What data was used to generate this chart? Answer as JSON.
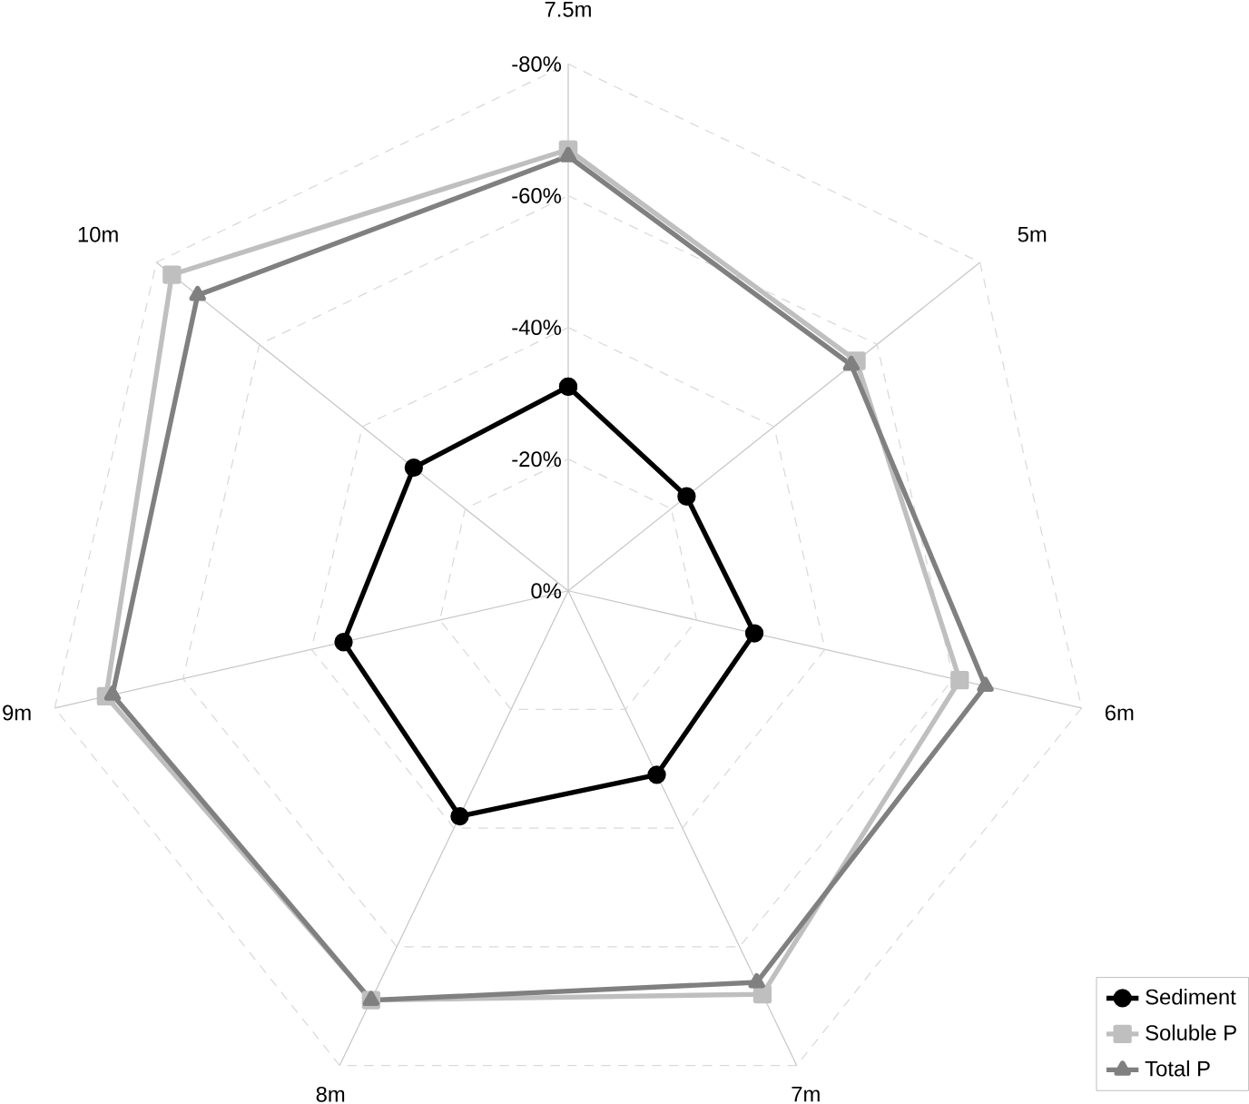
{
  "chart_data": {
    "type": "radar",
    "categories": [
      "7.5m",
      "5m",
      "6m",
      "7m",
      "8m",
      "9m",
      "10m"
    ],
    "ylim": [
      0,
      -80
    ],
    "yticks": [
      {
        "value": 0,
        "label": "0%"
      },
      {
        "value": -20,
        "label": "-20%"
      },
      {
        "value": -40,
        "label": "-40%"
      },
      {
        "value": -60,
        "label": "-60%"
      },
      {
        "value": -80,
        "label": "-80%"
      }
    ],
    "grid": true,
    "legend": "bottom right",
    "series": [
      {
        "name": "Sediment",
        "color": "#000000",
        "marker": "circle",
        "values": [
          -31,
          -23,
          -29,
          -31,
          -38,
          -35,
          -30
        ]
      },
      {
        "name": "Soluble P",
        "color": "#bfbfbf",
        "marker": "square",
        "values": [
          -67,
          -56,
          -61,
          -68,
          -69,
          -72,
          -77
        ]
      },
      {
        "name": "Total P",
        "color": "#808080",
        "marker": "triangle",
        "values": [
          -66,
          -55,
          -65,
          -66,
          -69,
          -71,
          -72
        ]
      }
    ]
  }
}
